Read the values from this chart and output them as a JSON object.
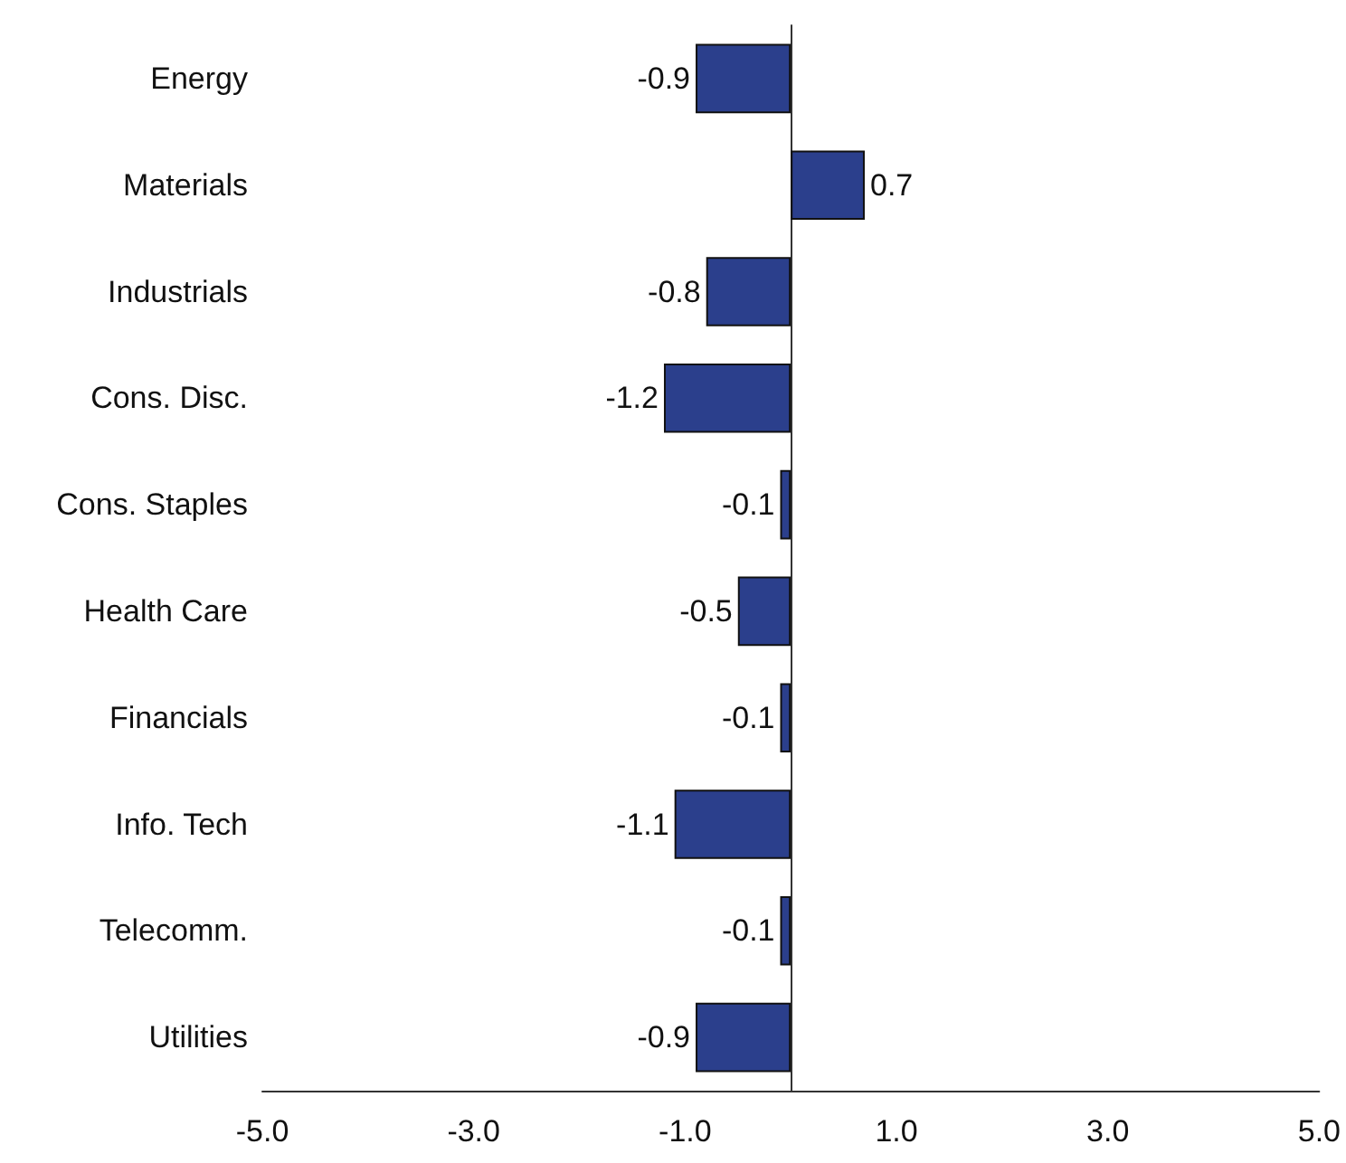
{
  "chart_data": {
    "type": "bar",
    "orientation": "horizontal",
    "categories": [
      "Energy",
      "Materials",
      "Industrials",
      "Cons. Disc.",
      "Cons. Staples",
      "Health Care",
      "Financials",
      "Info. Tech",
      "Telecomm.",
      "Utilities"
    ],
    "values": [
      -0.9,
      0.7,
      -0.8,
      -1.2,
      -0.1,
      -0.5,
      -0.1,
      -1.1,
      -0.1,
      -0.9
    ],
    "color": "#2b3f8c",
    "xlim": [
      -5,
      5
    ],
    "xticks": [
      {
        "value": -5,
        "label": "-5.0"
      },
      {
        "value": -3,
        "label": "-3.0"
      },
      {
        "value": -1,
        "label": "-1.0"
      },
      {
        "value": 1,
        "label": "1.0"
      },
      {
        "value": 3,
        "label": "3.0"
      },
      {
        "value": 5,
        "label": "5.0"
      }
    ],
    "data_labels": true,
    "grid": false
  }
}
